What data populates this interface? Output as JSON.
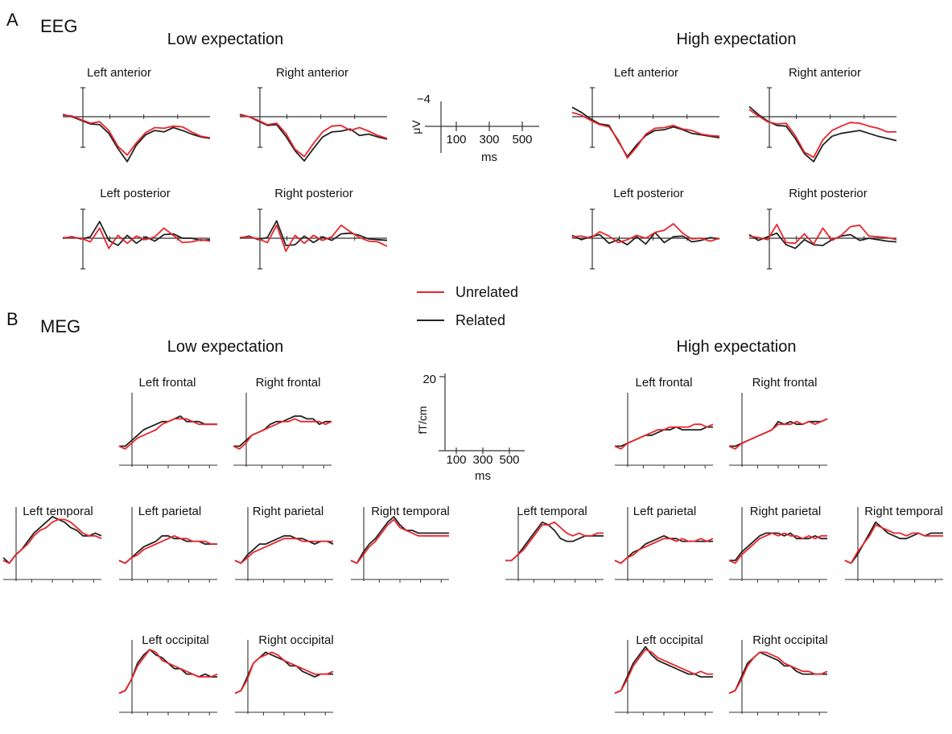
{
  "colors": {
    "unrelated": "#e8262b",
    "related": "#222222",
    "axis": "#333333"
  },
  "panels": {
    "A": {
      "letter": "A",
      "modality": "EEG"
    },
    "B": {
      "letter": "B",
      "modality": "MEG"
    }
  },
  "conditions": {
    "low": "Low expectation",
    "high": "High expectation"
  },
  "legend": {
    "unrelated": "Unrelated",
    "related": "Related"
  },
  "scale_bars": {
    "eeg": {
      "value": "−4",
      "unit": "μV",
      "ticks": [
        "100",
        "300",
        "500"
      ],
      "xunit": "ms"
    },
    "meg": {
      "value": "20",
      "unit": "fT/cm",
      "ticks": [
        "100",
        "300",
        "500"
      ],
      "xunit": "ms"
    }
  },
  "chart_data": [
    {
      "type": "line",
      "title": "EEG",
      "series_names": [
        "Unrelated",
        "Related"
      ],
      "x": [
        -100,
        -50,
        0,
        50,
        100,
        150,
        200,
        250,
        300,
        350,
        400,
        450,
        500,
        550,
        600,
        650,
        700
      ],
      "subplots": [
        {
          "condition": "Low expectation",
          "label": "Left anterior",
          "unrelated": [
            0.2,
            0.1,
            -0.4,
            -0.9,
            -0.7,
            -1.9,
            -4.1,
            -5.3,
            -3.6,
            -2.2,
            -1.5,
            -1.6,
            -1.3,
            -1.4,
            -2.1,
            -2.7,
            -2.9
          ],
          "related": [
            0.3,
            0.0,
            -0.5,
            -1.0,
            -1.1,
            -2.3,
            -4.4,
            -6.2,
            -3.9,
            -2.5,
            -1.9,
            -2.1,
            -1.5,
            -1.9,
            -2.4,
            -2.8,
            -3.0
          ]
        },
        {
          "condition": "Low expectation",
          "label": "Right anterior",
          "unrelated": [
            0.2,
            0.0,
            -0.5,
            -1.1,
            -0.9,
            -2.3,
            -4.5,
            -5.5,
            -3.7,
            -2.1,
            -1.3,
            -1.2,
            -1.9,
            -1.5,
            -2.0,
            -2.6,
            -3.0
          ],
          "related": [
            0.3,
            0.0,
            -0.6,
            -1.2,
            -1.1,
            -2.7,
            -4.7,
            -6.1,
            -4.4,
            -2.8,
            -2.1,
            -2.0,
            -1.7,
            -2.6,
            -2.4,
            -2.8,
            -3.1
          ]
        },
        {
          "condition": "Low expectation",
          "label": "Left posterior",
          "unrelated": [
            0.1,
            0.1,
            0.0,
            -0.5,
            1.4,
            -1.4,
            0.4,
            -0.7,
            0.3,
            -0.2,
            0.2,
            1.4,
            0.4,
            -0.6,
            -0.5,
            -0.2,
            -0.4
          ],
          "related": [
            0.0,
            0.2,
            -0.1,
            0.2,
            2.3,
            -0.3,
            -1.0,
            0.4,
            -0.7,
            0.2,
            -0.4,
            0.5,
            0.6,
            0.0,
            0.0,
            -0.3,
            -0.2
          ]
        },
        {
          "condition": "Low expectation",
          "label": "Right posterior",
          "unrelated": [
            0.1,
            0.2,
            -0.1,
            -0.6,
            1.8,
            -1.8,
            0.4,
            -0.7,
            0.4,
            -0.3,
            0.2,
            1.8,
            0.9,
            0.1,
            -0.4,
            -0.5,
            -1.1
          ],
          "related": [
            0.0,
            0.3,
            -0.2,
            0.1,
            2.4,
            -1.0,
            -0.9,
            0.3,
            -0.6,
            0.2,
            -0.3,
            0.6,
            0.7,
            0.4,
            -0.1,
            -0.2,
            -0.3
          ]
        },
        {
          "condition": "High expectation",
          "label": "Left anterior",
          "unrelated": [
            0.6,
            0.2,
            -0.5,
            -1.1,
            -1.4,
            -3.2,
            -5.7,
            -4.2,
            -2.4,
            -1.6,
            -1.5,
            -1.2,
            -1.7,
            -1.9,
            -2.4,
            -2.6,
            -2.7
          ],
          "related": [
            1.3,
            0.6,
            -0.3,
            -1.0,
            -1.2,
            -3.4,
            -5.5,
            -3.9,
            -2.6,
            -1.9,
            -1.8,
            -1.4,
            -1.8,
            -2.3,
            -2.5,
            -2.7,
            -2.9
          ]
        },
        {
          "condition": "High expectation",
          "label": "Right anterior",
          "unrelated": [
            1.0,
            0.1,
            -0.7,
            -1.0,
            -0.9,
            -2.6,
            -4.9,
            -5.6,
            -3.2,
            -1.9,
            -1.3,
            -0.8,
            -0.9,
            -1.3,
            -1.6,
            -2.1,
            -2.1
          ],
          "related": [
            1.4,
            0.3,
            -0.6,
            -1.2,
            -1.3,
            -3.0,
            -5.1,
            -6.2,
            -3.9,
            -2.7,
            -2.3,
            -2.1,
            -1.9,
            -2.3,
            -2.7,
            -3.0,
            -3.3
          ]
        },
        {
          "condition": "High expectation",
          "label": "Left posterior",
          "unrelated": [
            0.2,
            0.3,
            0.0,
            0.9,
            0.3,
            -0.6,
            -0.2,
            0.4,
            0.0,
            0.8,
            1.1,
            2.0,
            0.7,
            -0.1,
            0.0,
            -0.4,
            0.0
          ],
          "related": [
            0.4,
            -0.2,
            0.2,
            0.5,
            -0.7,
            -0.2,
            -0.9,
            0.2,
            -0.8,
            0.8,
            -0.6,
            0.2,
            0.3,
            -0.5,
            -0.3,
            0.1,
            -0.1
          ]
        },
        {
          "condition": "High expectation",
          "label": "Right posterior",
          "unrelated": [
            0.3,
            0.1,
            -0.2,
            1.9,
            -0.6,
            -0.7,
            0.6,
            -0.8,
            1.4,
            -0.3,
            0.4,
            1.6,
            1.8,
            0.3,
            0.2,
            0.1,
            -0.2
          ],
          "related": [
            0.5,
            -0.3,
            0.2,
            0.7,
            -0.9,
            -1.4,
            -0.2,
            -0.9,
            -1.0,
            -0.2,
            0.3,
            0.5,
            -0.3,
            0.0,
            -0.2,
            -0.4,
            -0.5
          ]
        }
      ]
    },
    {
      "type": "line",
      "title": "MEG",
      "series_names": [
        "Unrelated",
        "Related"
      ],
      "x": [
        -100,
        -50,
        0,
        50,
        100,
        150,
        200,
        250,
        300,
        350,
        400,
        450,
        500,
        550,
        600,
        650,
        700
      ],
      "subplots": [
        {
          "condition": "Low expectation",
          "label": "Left frontal",
          "unrelated": [
            4,
            3,
            5,
            7,
            8,
            9,
            10,
            12,
            13,
            14,
            14,
            14,
            13,
            12,
            12,
            12,
            12
          ],
          "related": [
            4,
            4,
            6,
            8,
            10,
            11,
            12,
            13,
            13,
            14,
            15,
            13,
            13,
            13,
            12,
            12,
            12
          ]
        },
        {
          "condition": "Low expectation",
          "label": "Right frontal",
          "unrelated": [
            4,
            3,
            5,
            8,
            9,
            10,
            11,
            12,
            13,
            13,
            14,
            13,
            13,
            13,
            13,
            12,
            13
          ],
          "related": [
            4,
            4,
            6,
            8,
            9,
            10,
            12,
            13,
            13,
            14,
            15,
            15,
            14,
            14,
            12,
            13,
            13
          ]
        },
        {
          "condition": "Low expectation",
          "label": "Left temporal",
          "unrelated": [
            4,
            3,
            6,
            8,
            10,
            13,
            15,
            16,
            18,
            19,
            19,
            18,
            16,
            14,
            13,
            13,
            12
          ],
          "related": [
            5,
            3,
            6,
            8,
            11,
            14,
            16,
            18,
            20,
            19,
            18,
            16,
            15,
            13,
            13,
            14,
            13
          ]
        },
        {
          "condition": "Low expectation",
          "label": "Left parietal",
          "unrelated": [
            4,
            3,
            5,
            6,
            8,
            9,
            10,
            11,
            12,
            13,
            12,
            12,
            11,
            11,
            11,
            10,
            10
          ],
          "related": [
            4,
            3,
            5,
            7,
            9,
            10,
            11,
            13,
            13,
            12,
            12,
            11,
            11,
            11,
            10,
            10,
            10
          ]
        },
        {
          "condition": "Low expectation",
          "label": "Right parietal",
          "unrelated": [
            4,
            3,
            5,
            7,
            8,
            9,
            10,
            11,
            12,
            12,
            12,
            11,
            11,
            11,
            11,
            11,
            11
          ],
          "related": [
            4,
            3,
            6,
            8,
            10,
            10,
            11,
            12,
            13,
            13,
            12,
            12,
            11,
            10,
            11,
            11,
            10
          ]
        },
        {
          "condition": "Low expectation",
          "label": "Right temporal",
          "unrelated": [
            4,
            3,
            6,
            9,
            11,
            14,
            17,
            19,
            16,
            15,
            14,
            13,
            13,
            13,
            13,
            13,
            13
          ],
          "related": [
            4,
            3,
            7,
            10,
            12,
            15,
            18,
            20,
            17,
            15,
            15,
            14,
            14,
            14,
            14,
            14,
            14
          ]
        },
        {
          "condition": "Low expectation",
          "label": "Left occipital",
          "unrelated": [
            4,
            5,
            9,
            14,
            17,
            20,
            19,
            16,
            15,
            14,
            13,
            12,
            11,
            10,
            10,
            10,
            11
          ],
          "related": [
            4,
            5,
            9,
            15,
            18,
            20,
            18,
            17,
            15,
            13,
            13,
            11,
            11,
            10,
            11,
            10,
            10
          ]
        },
        {
          "condition": "Low expectation",
          "label": "Right occipital",
          "unrelated": [
            4,
            5,
            9,
            15,
            17,
            18,
            19,
            18,
            16,
            15,
            14,
            13,
            12,
            11,
            11,
            11,
            12
          ],
          "related": [
            4,
            5,
            10,
            15,
            17,
            19,
            18,
            17,
            16,
            14,
            14,
            12,
            11,
            10,
            11,
            11,
            11
          ]
        },
        {
          "condition": "High expectation",
          "label": "Left frontal",
          "unrelated": [
            4,
            3,
            5,
            6,
            7,
            8,
            9,
            10,
            10,
            11,
            11,
            11,
            11,
            12,
            12,
            11,
            12
          ],
          "related": [
            4,
            4,
            5,
            6,
            7,
            8,
            8,
            9,
            10,
            10,
            11,
            10,
            10,
            10,
            10,
            11,
            11
          ]
        },
        {
          "condition": "High expectation",
          "label": "Right frontal",
          "unrelated": [
            4,
            3,
            5,
            6,
            7,
            8,
            9,
            10,
            12,
            12,
            12,
            13,
            12,
            13,
            12,
            13,
            14
          ],
          "related": [
            4,
            4,
            5,
            6,
            7,
            8,
            9,
            10,
            13,
            12,
            13,
            12,
            12,
            13,
            13,
            13,
            14
          ]
        },
        {
          "condition": "High expectation",
          "label": "Left temporal",
          "unrelated": [
            4,
            4,
            6,
            8,
            11,
            14,
            17,
            17,
            18,
            16,
            14,
            13,
            14,
            13,
            13,
            14,
            14
          ],
          "related": [
            4,
            4,
            6,
            9,
            12,
            15,
            18,
            17,
            15,
            12,
            11,
            11,
            12,
            13,
            13,
            13,
            13
          ]
        },
        {
          "condition": "High expectation",
          "label": "Left parietal",
          "unrelated": [
            4,
            3,
            5,
            6,
            8,
            9,
            10,
            11,
            12,
            12,
            11,
            12,
            11,
            11,
            12,
            11,
            12
          ],
          "related": [
            4,
            3,
            5,
            7,
            8,
            10,
            11,
            12,
            13,
            12,
            12,
            11,
            11,
            11,
            11,
            11,
            11
          ]
        },
        {
          "condition": "High expectation",
          "label": "Right parietal",
          "unrelated": [
            4,
            3,
            6,
            8,
            10,
            12,
            13,
            14,
            13,
            14,
            13,
            13,
            12,
            13,
            12,
            13,
            13
          ],
          "related": [
            4,
            4,
            7,
            9,
            11,
            13,
            14,
            14,
            14,
            13,
            14,
            12,
            12,
            12,
            13,
            12,
            12
          ]
        },
        {
          "condition": "High expectation",
          "label": "Right temporal",
          "unrelated": [
            4,
            3,
            7,
            10,
            13,
            17,
            16,
            15,
            14,
            14,
            13,
            14,
            14,
            13,
            13,
            13,
            13
          ],
          "related": [
            4,
            3,
            6,
            10,
            14,
            18,
            16,
            14,
            13,
            12,
            12,
            13,
            14,
            13,
            14,
            14,
            14
          ]
        },
        {
          "condition": "High expectation",
          "label": "Left occipital",
          "unrelated": [
            4,
            5,
            9,
            14,
            17,
            20,
            19,
            17,
            16,
            15,
            14,
            13,
            12,
            11,
            12,
            11,
            11
          ],
          "related": [
            4,
            5,
            10,
            15,
            18,
            21,
            18,
            16,
            15,
            14,
            13,
            12,
            11,
            11,
            10,
            10,
            10
          ]
        },
        {
          "condition": "High expectation",
          "label": "Right occipital",
          "unrelated": [
            4,
            5,
            9,
            14,
            17,
            19,
            19,
            18,
            17,
            15,
            14,
            13,
            12,
            12,
            11,
            11,
            12
          ],
          "related": [
            4,
            5,
            10,
            15,
            17,
            19,
            18,
            17,
            16,
            14,
            14,
            12,
            11,
            11,
            11,
            11,
            11
          ]
        }
      ]
    }
  ]
}
